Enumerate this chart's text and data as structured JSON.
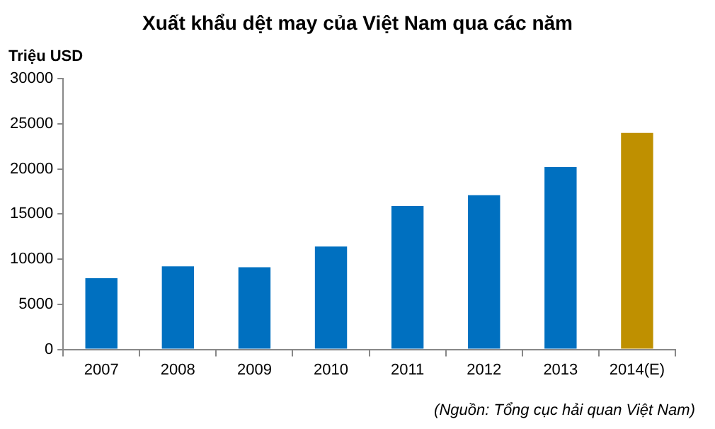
{
  "chart_data": {
    "type": "bar",
    "title": "Xuất khẩu dệt may của Việt Nam qua các năm",
    "ylabel": "Triệu USD",
    "categories": [
      "2007",
      "2008",
      "2009",
      "2010",
      "2011",
      "2012",
      "2013",
      "2014(E)"
    ],
    "values": [
      7900,
      9200,
      9100,
      11400,
      15900,
      17100,
      20200,
      24000
    ],
    "colors": [
      "#0070c0",
      "#0070c0",
      "#0070c0",
      "#0070c0",
      "#0070c0",
      "#0070c0",
      "#0070c0",
      "#bf9000"
    ],
    "ylim": [
      0,
      30000
    ],
    "yticks": [
      0,
      5000,
      10000,
      15000,
      20000,
      25000,
      30000
    ],
    "grid": false,
    "legend": false,
    "annotations": [
      "(Nguồn: Tổng cục hải quan Việt Nam)"
    ]
  }
}
